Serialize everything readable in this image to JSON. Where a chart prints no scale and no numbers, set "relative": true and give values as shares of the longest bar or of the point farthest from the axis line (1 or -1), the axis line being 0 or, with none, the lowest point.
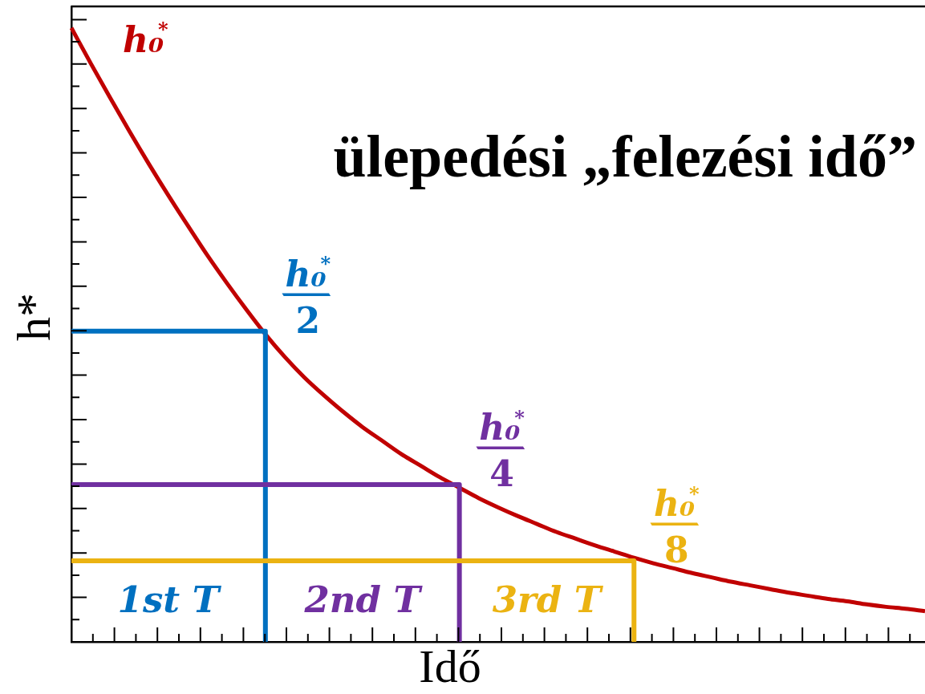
{
  "chart_data": {
    "type": "line",
    "title": "ülepedési „felezési idő”",
    "xlabel": "Idő",
    "ylabel": "h*",
    "relative": true,
    "tick_labels": false,
    "marker": "none",
    "categories": [
      null,
      null,
      null,
      null,
      null,
      null,
      null,
      null,
      null,
      null,
      null,
      null,
      null,
      null,
      null,
      null,
      null,
      null,
      null,
      null,
      null,
      null,
      null,
      null,
      null,
      null,
      null,
      null,
      null,
      null,
      null,
      null,
      null,
      null,
      null,
      null,
      null,
      null,
      null,
      null,
      null,
      null,
      null,
      null,
      null
    ],
    "series": [
      {
        "name": "h₀$^{*}$",
        "color": "#c00000",
        "values": [
          1.0,
          0.942,
          0.886,
          0.831,
          0.778,
          0.727,
          0.678,
          0.63,
          0.585,
          0.542,
          0.501,
          0.464,
          0.431,
          0.402,
          0.375,
          0.35,
          0.328,
          0.306,
          0.287,
          0.268,
          0.251,
          0.234,
          0.219,
          0.205,
          0.192,
          0.179,
          0.168,
          0.157,
          0.147,
          0.137,
          0.128,
          0.12,
          0.112,
          0.105,
          0.098,
          0.092,
          0.086,
          0.08,
          0.075,
          0.07,
          0.066,
          0.061,
          0.057,
          0.054,
          0.05
        ]
      },
      {
        "name": "h₀$^{*}$/2",
        "type": "step",
        "color": "#0070c0",
        "values": [
          0.506,
          0.506,
          0.506,
          0.506,
          0.506,
          0.506,
          0.506,
          0.506,
          0.506,
          0.506,
          0,
          null,
          null,
          null,
          null,
          null,
          null,
          null,
          null,
          null,
          null,
          null,
          null,
          null,
          null,
          null,
          null,
          null,
          null,
          null,
          null,
          null,
          null,
          null,
          null,
          null,
          null,
          null,
          null,
          null,
          null,
          null,
          null,
          null,
          null
        ]
      },
      {
        "name": "h₀$^{*}$/4",
        "type": "step",
        "color": "#7030a0",
        "values": [
          0.256,
          0.256,
          0.256,
          0.256,
          0.256,
          0.256,
          0.256,
          0.256,
          0.256,
          0.256,
          0.256,
          0.256,
          0.256,
          0.256,
          0.256,
          0.256,
          0.256,
          0.256,
          0.256,
          0.256,
          0,
          null,
          null,
          null,
          null,
          null,
          null,
          null,
          null,
          null,
          null,
          null,
          null,
          null,
          null,
          null,
          null,
          null,
          null,
          null,
          null,
          null,
          null,
          null,
          null
        ]
      },
      {
        "name": "h₀$^{*}$/8",
        "type": "step",
        "color": "#ebb312",
        "values": [
          0.132,
          0.132,
          0.132,
          0.132,
          0.132,
          0.132,
          0.132,
          0.132,
          0.132,
          0.132,
          0.132,
          0.132,
          0.132,
          0.132,
          0.132,
          0.132,
          0.132,
          0.132,
          0.132,
          0.132,
          0.132,
          0.132,
          0.132,
          0.132,
          0.132,
          0.132,
          0.132,
          0.132,
          0.132,
          0,
          null,
          null,
          null,
          null,
          null,
          null,
          null,
          null,
          null,
          null,
          null,
          null,
          null,
          null,
          null
        ]
      }
    ],
    "annotations": [
      "1st T",
      "2nd T",
      "3rd T"
    ]
  }
}
